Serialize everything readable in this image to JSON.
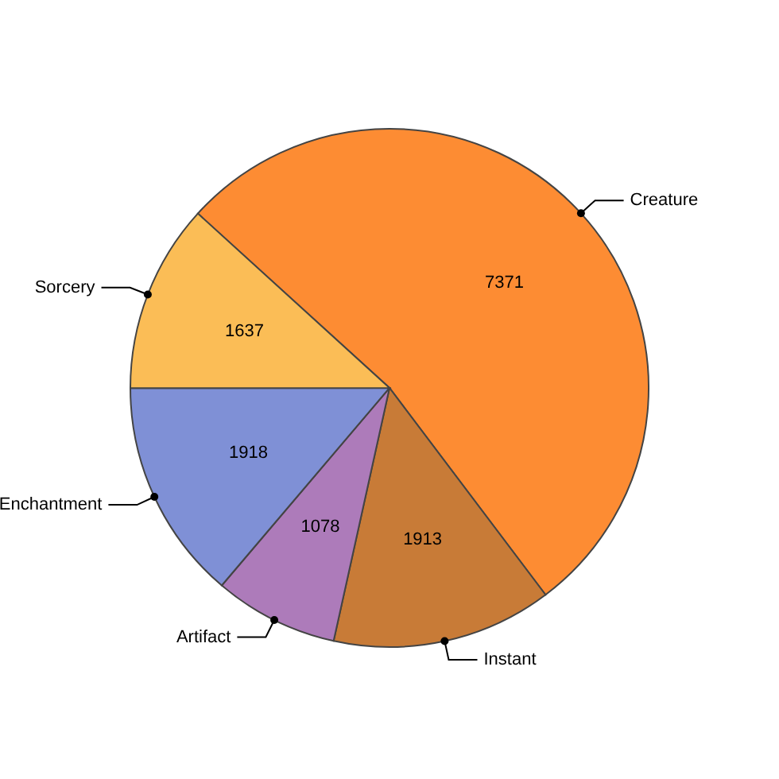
{
  "chart_data": {
    "type": "pie",
    "categories": [
      "Creature",
      "Instant",
      "Artifact",
      "Enchantment",
      "Sorcery"
    ],
    "values": [
      7371,
      1913,
      1078,
      1918,
      1637
    ],
    "colors": [
      "#fd8c33",
      "#c87b37",
      "#ad7bba",
      "#7f90d6",
      "#fbbd56"
    ],
    "data_labels": true,
    "legend": false
  }
}
